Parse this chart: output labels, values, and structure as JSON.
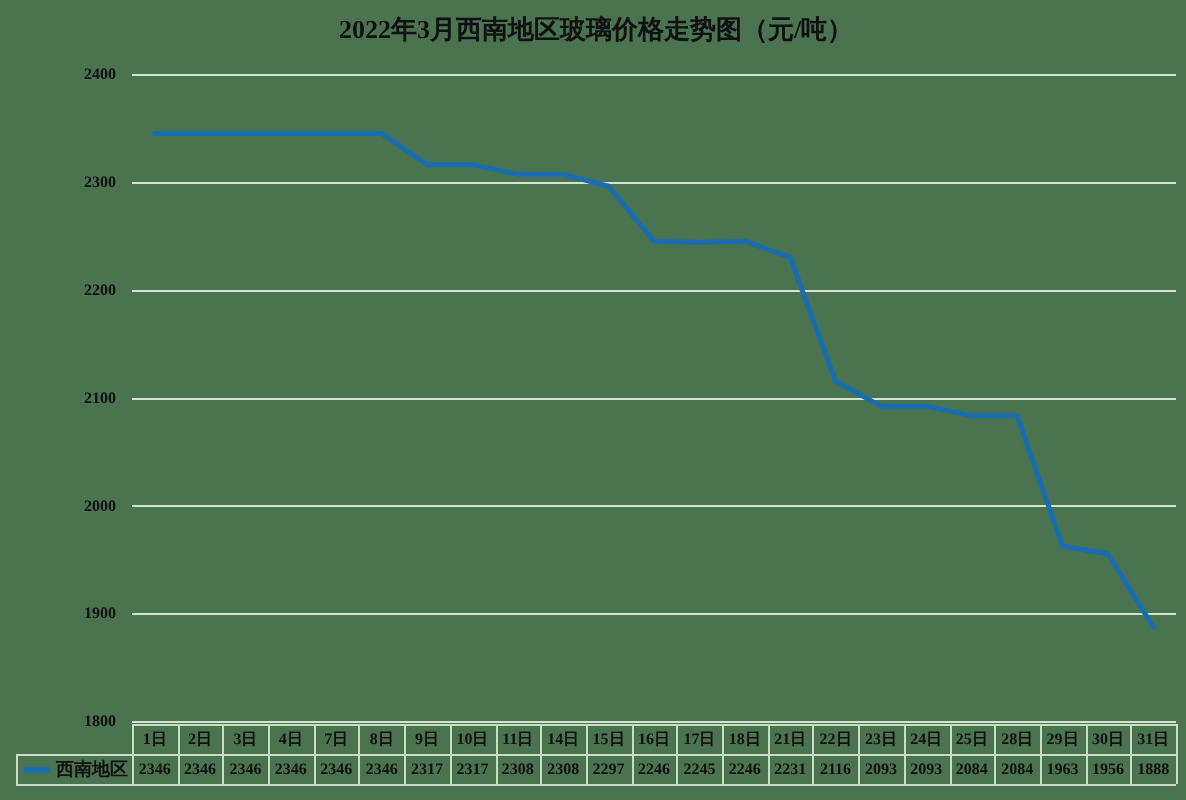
{
  "chart_data": {
    "type": "line",
    "title": "2022年3月西南地区玻璃价格走势图（元/吨）",
    "categories": [
      "1日",
      "2日",
      "3日",
      "4日",
      "7日",
      "8日",
      "9日",
      "10日",
      "11日",
      "14日",
      "15日",
      "16日",
      "17日",
      "18日",
      "21日",
      "22日",
      "23日",
      "24日",
      "25日",
      "28日",
      "29日",
      "30日",
      "31日"
    ],
    "series": [
      {
        "name": "西南地区",
        "color": "#1b6db2",
        "values": [
          2346,
          2346,
          2346,
          2346,
          2346,
          2346,
          2317,
          2317,
          2308,
          2308,
          2297,
          2246,
          2245,
          2246,
          2231,
          2116,
          2093,
          2093,
          2084,
          2084,
          1963,
          1956,
          1888
        ]
      }
    ],
    "ylim": [
      1800,
      2400
    ],
    "yticks": [
      1800,
      1900,
      2000,
      2100,
      2200,
      2300,
      2400
    ],
    "grid": "y",
    "legend": "bottom",
    "marker": "none",
    "line_style": "solid",
    "data_labels": true
  }
}
